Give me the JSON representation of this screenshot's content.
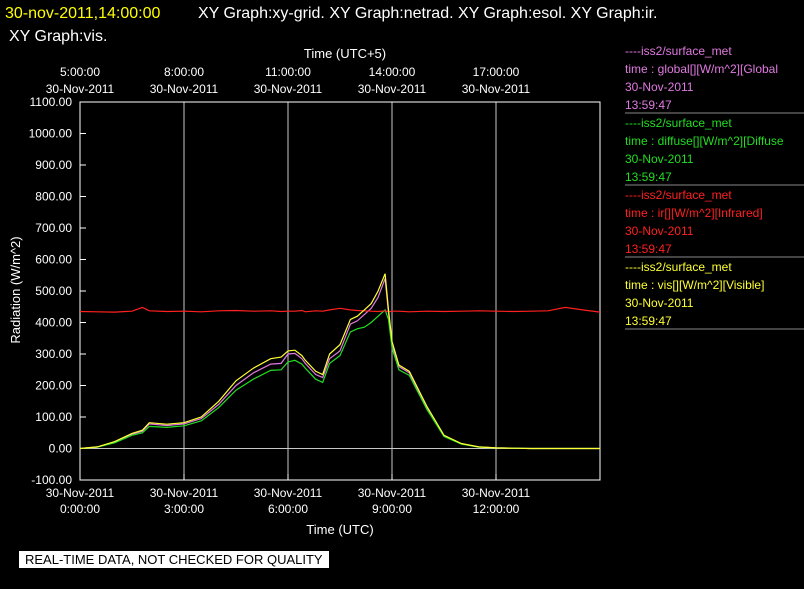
{
  "header": {
    "timestamp": "30-nov-2011,14:00:00",
    "graphs_line1": "XY Graph:xy-grid.  XY Graph:netrad.  XY Graph:esol.  XY Graph:ir.",
    "graphs_line2": "XY Graph:vis."
  },
  "colors": {
    "background": "#000000",
    "timestamp": "#ffff00",
    "text": "#ffffff",
    "grid": "#c8c8c8",
    "global": "#e07ae0",
    "diffuse": "#22dd22",
    "ir": "#ff2020",
    "vis": "#ffff33"
  },
  "legend": [
    {
      "source": "----iss2/surface_met",
      "desc": "time : global[][W/m^2][Global",
      "date": "30-Nov-2011",
      "time": "13:59:47",
      "color": "#e07ae0"
    },
    {
      "source": "----iss2/surface_met",
      "desc": "time : diffuse[][W/m^2][Diffuse",
      "date": "30-Nov-2011",
      "time": "13:59:47",
      "color": "#22dd22"
    },
    {
      "source": "----iss2/surface_met",
      "desc": "time : ir[][W/m^2][Infrared]",
      "date": "30-Nov-2011",
      "time": "13:59:47",
      "color": "#ff2020"
    },
    {
      "source": "----iss2/surface_met",
      "desc": "time : vis[][W/m^2][Visible]",
      "date": "30-Nov-2011",
      "time": "13:59:47",
      "color": "#ffff33"
    }
  ],
  "banner": "REAL-TIME DATA, NOT CHECKED FOR QUALITY",
  "chart_data": {
    "type": "line",
    "xlabel": "Time (UTC)",
    "top_xlabel": "Time (UTC+5)",
    "ylabel": "Radiation (W/m^2)",
    "ylim": [
      -100,
      1100
    ],
    "xlim": [
      0,
      15
    ],
    "x_unit": "hours UTC",
    "grid": true,
    "yticks": [
      -100,
      0,
      100,
      200,
      300,
      400,
      500,
      600,
      700,
      800,
      900,
      1000,
      1100
    ],
    "ytick_labels": [
      "-100.00",
      "0.00",
      "100.00",
      "200.00",
      "300.00",
      "400.00",
      "500.00",
      "600.00",
      "700.00",
      "800.00",
      "900.00",
      "1000.00",
      "1100.00"
    ],
    "bottom_ticks": [
      {
        "x": 0,
        "date": "30-Nov-2011",
        "time": "0:00:00"
      },
      {
        "x": 3,
        "date": "30-Nov-2011",
        "time": "3:00:00"
      },
      {
        "x": 6,
        "date": "30-Nov-2011",
        "time": "6:00:00"
      },
      {
        "x": 9,
        "date": "30-Nov-2011",
        "time": "9:00:00"
      },
      {
        "x": 12,
        "date": "30-Nov-2011",
        "time": "12:00:00"
      }
    ],
    "top_ticks": [
      {
        "x": 0,
        "time": "5:00:00",
        "date": "30-Nov-2011"
      },
      {
        "x": 3,
        "time": "8:00:00",
        "date": "30-Nov-2011"
      },
      {
        "x": 6,
        "time": "11:00:00",
        "date": "30-Nov-2011"
      },
      {
        "x": 9,
        "time": "14:00:00",
        "date": "30-Nov-2011"
      },
      {
        "x": 12,
        "time": "17:00:00",
        "date": "30-Nov-2011"
      }
    ],
    "x": [
      0,
      0.5,
      1,
      1.5,
      1.8,
      2,
      2.5,
      3,
      3.5,
      4,
      4.5,
      5,
      5.5,
      5.8,
      6,
      6.2,
      6.4,
      6.5,
      6.8,
      7,
      7.2,
      7.5,
      7.8,
      8,
      8.2,
      8.4,
      8.6,
      8.8,
      8.9,
      9,
      9.2,
      9.5,
      10,
      10.5,
      11,
      11.5,
      12,
      12.5,
      13,
      13.5,
      14,
      14.5,
      15
    ],
    "series": [
      {
        "name": "global",
        "color": "#e07ae0",
        "values": [
          0,
          5,
          20,
          45,
          55,
          78,
          73,
          78,
          95,
          140,
          200,
          240,
          268,
          270,
          300,
          302,
          285,
          270,
          235,
          225,
          285,
          310,
          395,
          405,
          425,
          445,
          480,
          540,
          430,
          330,
          260,
          240,
          130,
          40,
          15,
          5,
          2,
          1,
          0,
          0,
          0,
          0,
          0
        ]
      },
      {
        "name": "diffuse",
        "color": "#22dd22",
        "values": [
          0,
          4,
          18,
          42,
          50,
          70,
          67,
          72,
          88,
          130,
          185,
          220,
          248,
          250,
          275,
          280,
          268,
          255,
          220,
          210,
          270,
          295,
          370,
          380,
          385,
          400,
          420,
          440,
          410,
          320,
          250,
          232,
          125,
          38,
          14,
          4,
          2,
          1,
          0,
          0,
          0,
          0,
          0
        ]
      },
      {
        "name": "ir",
        "color": "#ff2020",
        "values": [
          435,
          434,
          433,
          436,
          448,
          437,
          435,
          436,
          434,
          437,
          438,
          436,
          437,
          435,
          436,
          436,
          438,
          434,
          437,
          436,
          440,
          445,
          440,
          438,
          437,
          436,
          435,
          437,
          434,
          436,
          436,
          434,
          436,
          435,
          436,
          437,
          436,
          435,
          436,
          437,
          448,
          440,
          433
        ]
      },
      {
        "name": "vis",
        "color": "#ffff33",
        "values": [
          0,
          5,
          22,
          48,
          58,
          82,
          77,
          82,
          100,
          150,
          215,
          255,
          285,
          290,
          310,
          312,
          295,
          280,
          245,
          235,
          300,
          330,
          410,
          420,
          440,
          460,
          500,
          555,
          440,
          340,
          265,
          245,
          135,
          42,
          16,
          5,
          2,
          1,
          0,
          0,
          0,
          0,
          0
        ]
      }
    ]
  }
}
